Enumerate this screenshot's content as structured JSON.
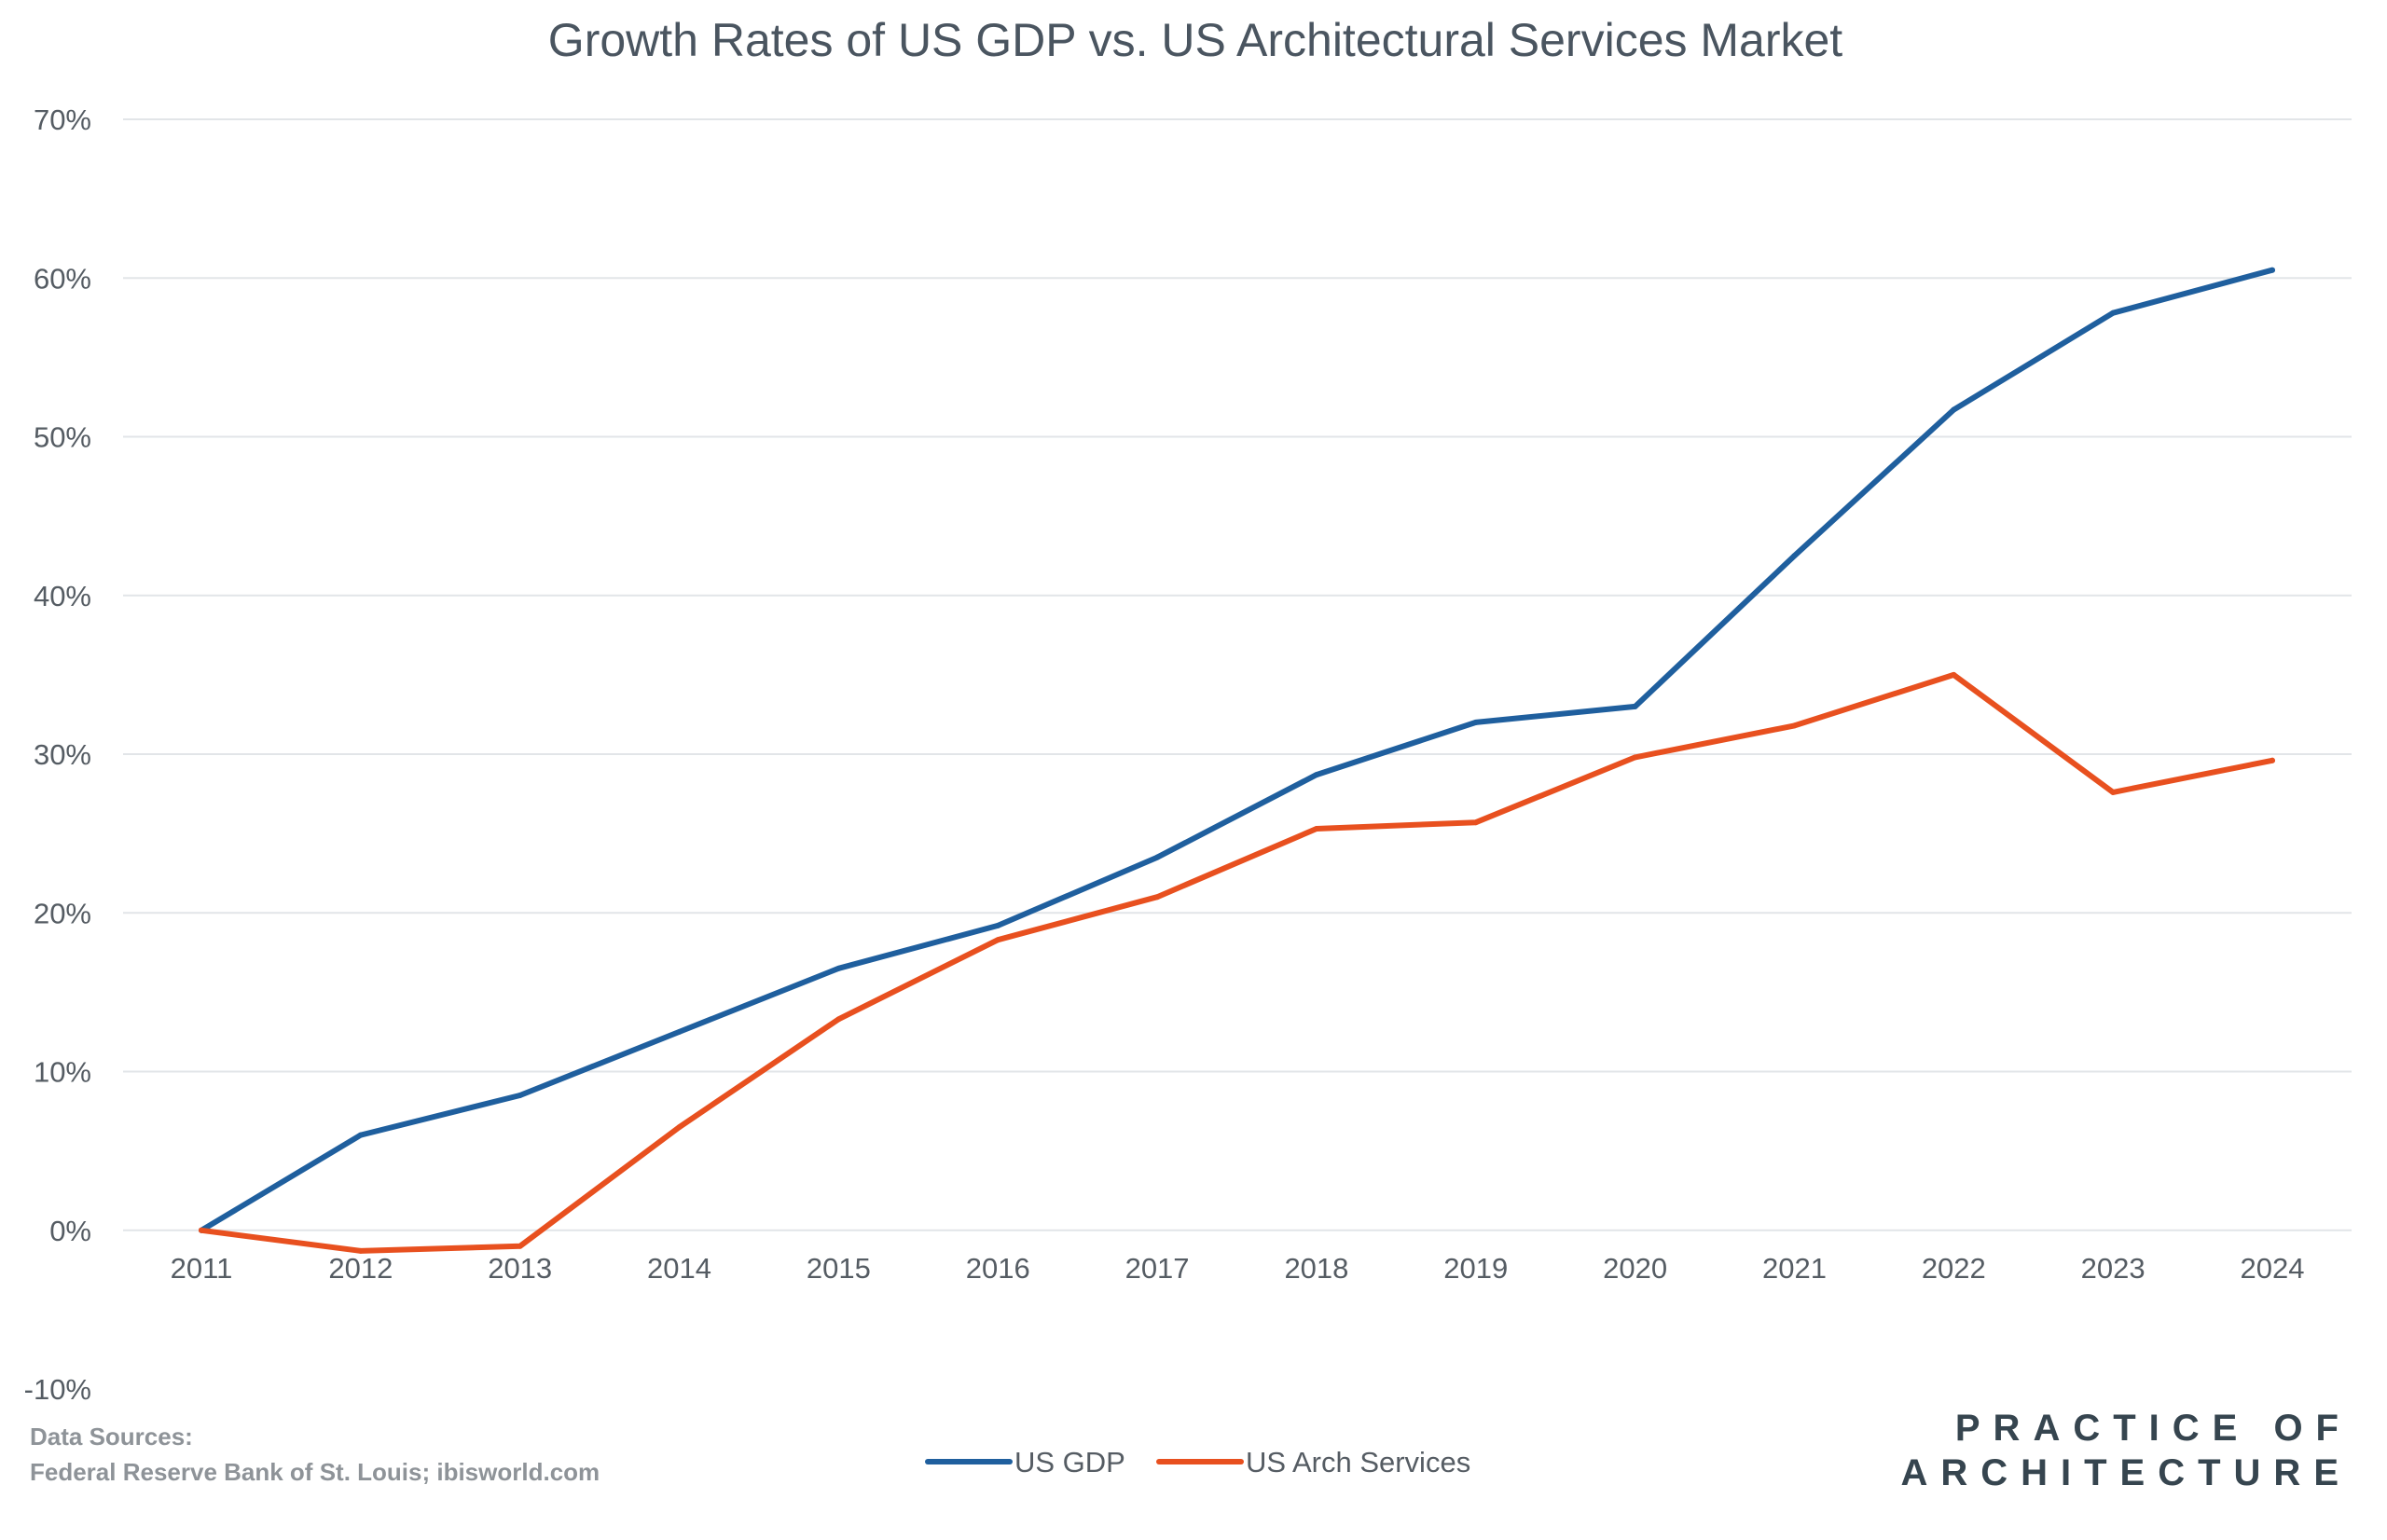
{
  "chart_data": {
    "type": "line",
    "title": "Growth Rates of US GDP vs. US Architectural Services Market",
    "xlabel": "",
    "ylabel": "",
    "x": [
      "2011",
      "2012",
      "2013",
      "2014",
      "2015",
      "2016",
      "2017",
      "2018",
      "2019",
      "2020",
      "2021",
      "2022",
      "2023",
      "2024"
    ],
    "series": [
      {
        "name": "US GDP",
        "color": "#1f5f9e",
        "values": [
          0,
          6.0,
          8.5,
          12.5,
          16.5,
          19.2,
          23.5,
          28.7,
          32.0,
          33.0,
          42.5,
          51.7,
          57.8,
          60.5
        ]
      },
      {
        "name": "US Arch Services",
        "color": "#e8501f",
        "values": [
          0,
          -1.3,
          -1.0,
          6.5,
          13.3,
          18.3,
          21.0,
          25.3,
          25.7,
          29.8,
          31.8,
          35.0,
          27.6,
          29.6
        ]
      }
    ],
    "ylim": [
      -10,
      70
    ],
    "yticks": [
      -10,
      0,
      10,
      20,
      30,
      40,
      50,
      60,
      70
    ],
    "ytick_labels": [
      "-10%",
      "0%",
      "10%",
      "20%",
      "30%",
      "40%",
      "50%",
      "60%",
      "70%"
    ],
    "grid": true,
    "legend_position": "bottom-center"
  },
  "footer": {
    "source_title": "Data Sources:",
    "source_text": "Federal Reserve Bank of St. Louis; ibisworld.com",
    "brand_line1": "PRACTICE OF",
    "brand_line2": "ARCHITECTURE"
  }
}
